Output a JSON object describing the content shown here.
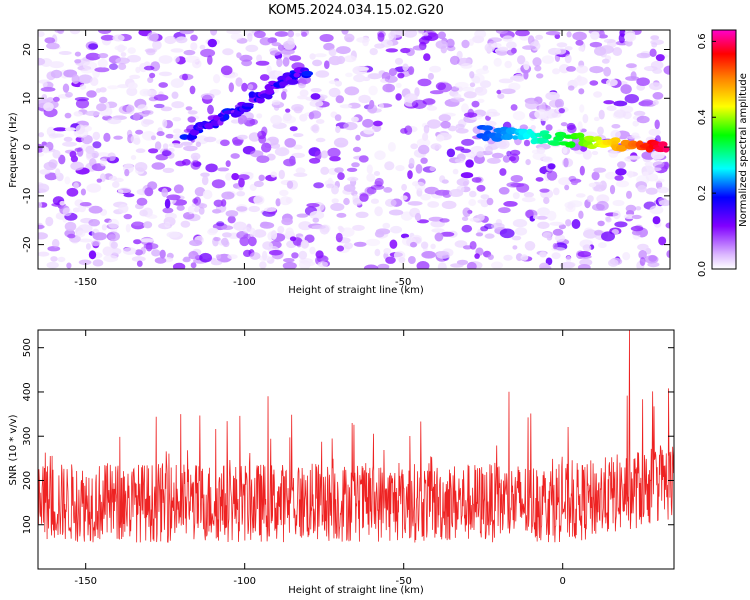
{
  "title": "KOM5.2024.034.15.02.G20",
  "chart_data": [
    {
      "type": "heatmap",
      "xlabel": "Height of straight line (km)",
      "ylabel": "Frequency (Hz)",
      "xlim": [
        -165,
        34
      ],
      "ylim": [
        -25,
        24
      ],
      "x_ticks": [
        -150,
        -100,
        -50,
        0
      ],
      "x_tick_labels": [
        "-150",
        "-100",
        "-50",
        "0"
      ],
      "y_ticks": [
        -20,
        -10,
        0,
        10,
        20
      ],
      "y_tick_labels": [
        "-20",
        "-10",
        "0",
        "10",
        "20"
      ],
      "colorbar": {
        "label": "Normalized spectral amplitude",
        "range": [
          0.0,
          0.63
        ],
        "ticks": [
          0.0,
          0.2,
          0.4,
          0.6
        ],
        "tick_labels": [
          "0.0",
          "0.2",
          "0.4",
          "0.6"
        ],
        "colors": [
          "#ffffff",
          "#d9b3ff",
          "#8000ff",
          "#0000ff",
          "#00ffff",
          "#00ff00",
          "#ffff00",
          "#ff8000",
          "#ff0000",
          "#ff00ff"
        ]
      },
      "features": [
        {
          "x_start": -118,
          "x_end": -80,
          "freq_start": 2,
          "freq_end": 16,
          "amplitude": 0.2
        },
        {
          "x_start": -25,
          "x_end": 32,
          "freq_start": 3,
          "freq_end": 0,
          "amplitude": 0.6
        }
      ]
    },
    {
      "type": "line",
      "xlabel": "Height of straight line (km)",
      "ylabel": "SNR (10 * v/v)",
      "xlim": [
        -165,
        35
      ],
      "ylim": [
        0,
        540
      ],
      "x_ticks": [
        -150,
        -100,
        -50,
        0
      ],
      "x_tick_labels": [
        "-150",
        "-100",
        "-50",
        "0"
      ],
      "y_ticks": [
        100,
        200,
        300,
        400,
        500
      ],
      "y_tick_labels": [
        "100",
        "200",
        "300",
        "400",
        "500"
      ],
      "color": "#ee2222",
      "series_summary": {
        "typical_low": 60,
        "typical_high": 260,
        "max_peak": 540,
        "max_peak_x": 21
      }
    }
  ]
}
